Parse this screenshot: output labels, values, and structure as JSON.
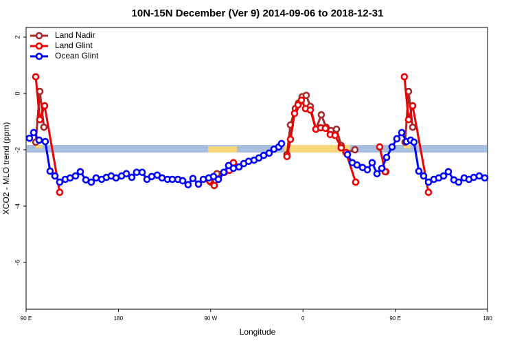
{
  "chart_data": {
    "type": "line",
    "title": "10N-15N December (Ver 9)   2014-09-06 to 2018-12-31",
    "x_label": "Longitude",
    "y_label": "XCO2 - MLO trend (ppm)",
    "xlim": [
      90,
      540
    ],
    "ylim": [
      -7.66,
      2.34
    ],
    "xticks": [
      {
        "value": 90,
        "label": "90 E"
      },
      180,
      {
        "value": 270,
        "label": "90 W"
      },
      {
        "value": 360,
        "label": "0"
      },
      {
        "value": 450,
        "label": "90 E"
      },
      {
        "value": 540,
        "label": "180"
      }
    ],
    "yticks": [
      2,
      0,
      -2,
      -4,
      -6
    ],
    "legend": "topleft",
    "series": [
      {
        "name": "Land Nadir",
        "color": "#a52a2a",
        "x": [
          99.4,
          103.4,
          107.4,
          null,
          270.1,
          276.1,
          292.9,
          null,
          344.4,
          347.8,
          352.5,
          355.8,
          359.2,
          363.2,
          367.2,
          372.6,
          377.9,
          382.6,
          387.3,
          392.7,
          397.3,
          402.0,
          410.7,
          null,
          440.9,
          null,
          459.6,
          463.0,
          467.0
        ],
        "values": [
          -1.73,
          0.07,
          -1.2,
          null,
          -3.15,
          -2.85,
          -2.56,
          null,
          -2.17,
          -1.12,
          -0.54,
          -0.34,
          -0.12,
          -0.07,
          -0.46,
          -1.27,
          -0.76,
          -1.2,
          -1.32,
          -1.27,
          -1.85,
          -2.1,
          -2.0,
          null,
          -2.78,
          null,
          -1.73,
          0.07,
          -1.2
        ]
      },
      {
        "name": "Land Glint",
        "color": "#ee0000",
        "x": [
          99.4,
          103.4,
          108.1,
          122.8,
          null,
          268.8,
          273.5,
          283.5,
          288.2,
          292.2,
          null,
          344.4,
          347.8,
          351.8,
          355.2,
          358.5,
          362.5,
          367.2,
          372.6,
          377.3,
          381.9,
          386.6,
          391.3,
          397.3,
          402.0,
          411.4,
          null,
          434.8,
          440.2,
          null,
          458.9,
          463.0,
          467.0,
          482.4
        ],
        "values": [
          0.59,
          -0.93,
          -0.44,
          -3.51,
          null,
          -3.1,
          -3.27,
          -2.8,
          -2.73,
          -2.46,
          null,
          -2.24,
          -1.63,
          -0.71,
          -0.41,
          -0.24,
          -0.54,
          -0.59,
          -1.27,
          -1.22,
          -1.24,
          -1.46,
          -1.49,
          -1.93,
          -2.1,
          -3.15,
          null,
          -1.9,
          -2.78,
          null,
          0.59,
          -0.93,
          -0.44,
          -3.51
        ]
      },
      {
        "name": "Ocean Glint",
        "color": "#0000ff",
        "x": [
          93.3,
          97.4,
          102.7,
          108.7,
          113.4,
          118.1,
          122.8,
          128.2,
          132.9,
          138.2,
          142.9,
          148.3,
          153.6,
          158.3,
          163.7,
          168.3,
          173.0,
          177.7,
          183.1,
          187.8,
          193.1,
          197.8,
          203.2,
          207.9,
          212.5,
          217.9,
          222.6,
          227.9,
          232.6,
          238.0,
          242.7,
          248.0,
          252.7,
          258.1,
          262.8,
          268.1,
          272.8,
          277.5,
          282.8,
          287.5,
          292.2,
          297.6,
          302.3,
          307.0,
          312.3,
          317.0,
          321.7,
          327.0,
          331.7,
          336.4,
          339.1,
          null,
          403.4,
          408.1,
          412.7,
          418.1,
          422.8,
          427.5,
          432.2,
          436.9,
          441.6,
          446.9,
          451.6,
          456.3,
          461.0,
          465.0,
          468.3,
          473.0,
          477.7,
          482.4,
          487.7,
          492.4,
          497.1,
          501.8,
          507.2,
          511.8,
          517.2,
          521.9,
          526.6,
          531.9,
          537.3
        ],
        "values": [
          -1.59,
          -1.39,
          -1.66,
          -1.71,
          -2.76,
          -2.93,
          -3.15,
          -3.05,
          -3.0,
          -2.93,
          -2.78,
          -3.07,
          -3.15,
          -3.0,
          -3.05,
          -2.98,
          -2.93,
          -3.0,
          -2.93,
          -2.85,
          -2.98,
          -2.8,
          -2.8,
          -3.05,
          -2.95,
          -2.9,
          -3.0,
          -3.05,
          -3.05,
          -3.05,
          -3.1,
          -3.24,
          -3.02,
          -3.22,
          -3.05,
          -3.0,
          -2.95,
          -3.05,
          -2.8,
          -2.56,
          -2.66,
          -2.61,
          -2.49,
          -2.41,
          -2.37,
          -2.29,
          -2.2,
          -2.12,
          -1.98,
          -1.9,
          -1.78,
          null,
          -2.17,
          -2.46,
          -2.54,
          -2.63,
          -2.71,
          -2.46,
          -2.85,
          -2.66,
          -2.27,
          -1.9,
          -1.61,
          -1.39,
          -1.71,
          -1.66,
          -1.73,
          -2.76,
          -2.93,
          -3.15,
          -3.05,
          -3.0,
          -2.93,
          -2.78,
          -3.07,
          -3.15,
          -3.0,
          -3.05,
          -2.98,
          -2.93,
          -3.0
        ]
      }
    ]
  }
}
